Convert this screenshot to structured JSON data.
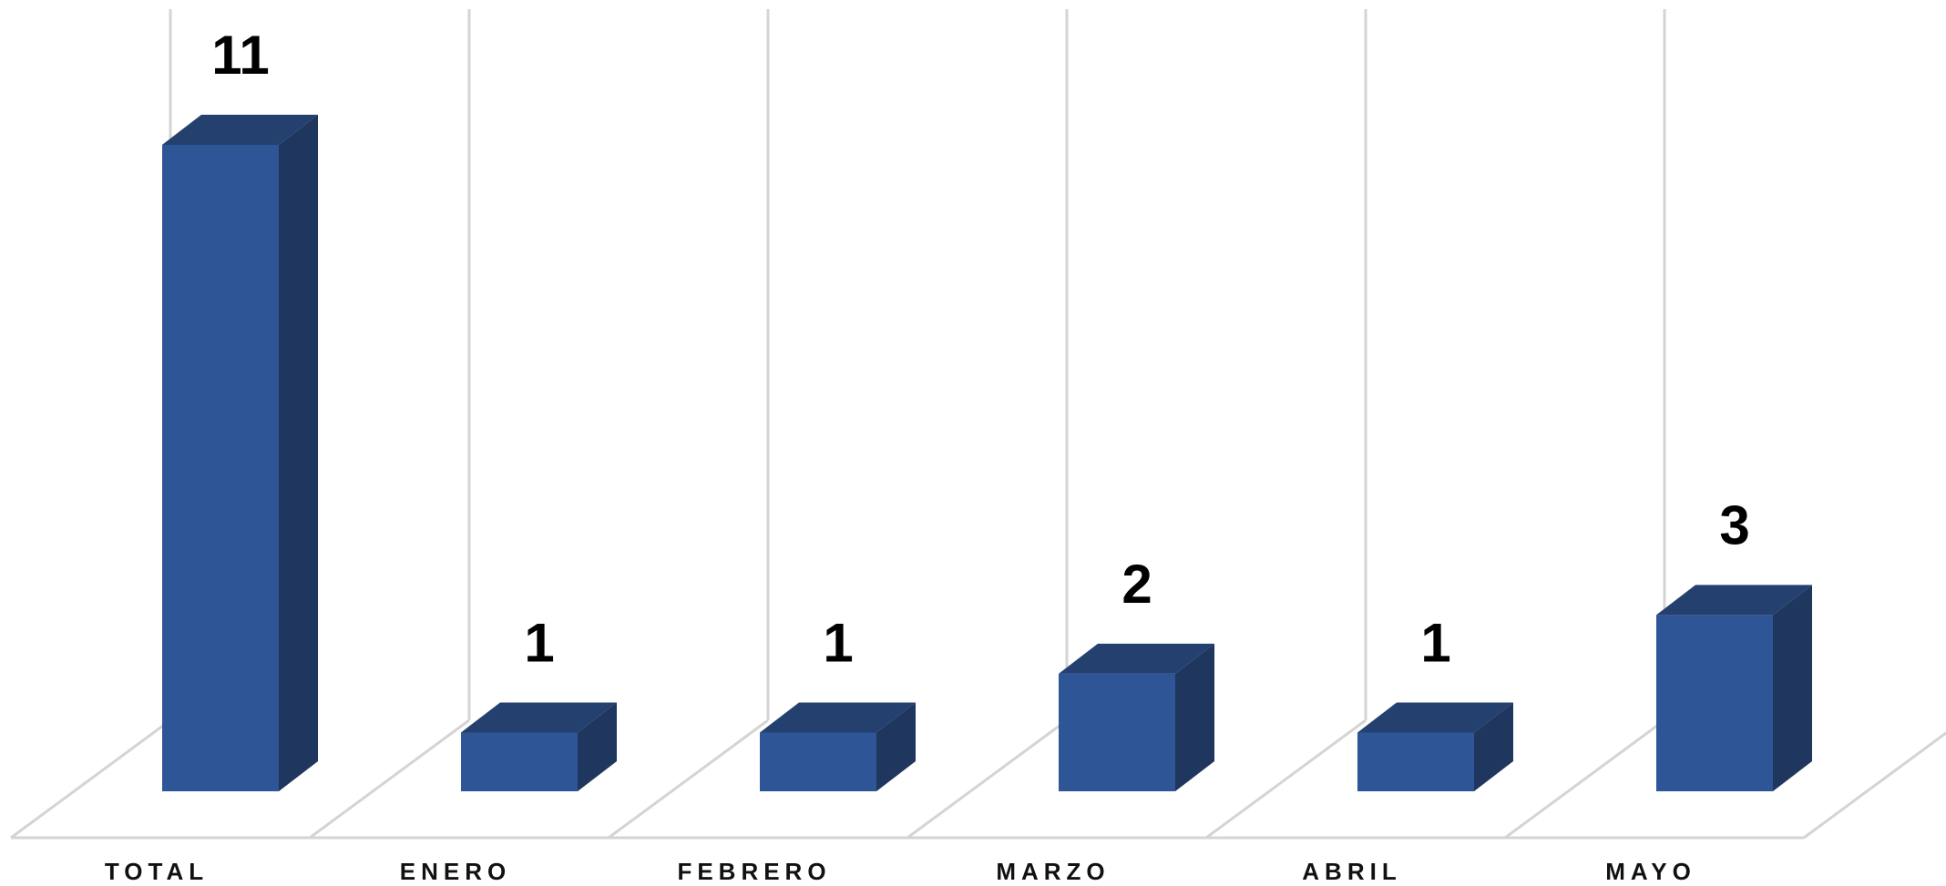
{
  "chart_data": {
    "type": "bar",
    "variant": "3d-column",
    "title": "",
    "xlabel": "",
    "ylabel": "",
    "categories": [
      "TOTAL",
      "ENERO",
      "FEBRERO",
      "MARZO",
      "ABRIL",
      "MAYO"
    ],
    "values": [
      11,
      1,
      1,
      2,
      1,
      3
    ],
    "data_labels": [
      "11",
      "1",
      "1",
      "2",
      "1",
      "3"
    ],
    "ylim": [
      0,
      11
    ],
    "grid": true,
    "legend": "none",
    "colors": {
      "bar_front": "#2e5596",
      "bar_top": "#24406f",
      "bar_side": "#1f365f",
      "grid": "#d4d4d4"
    }
  }
}
